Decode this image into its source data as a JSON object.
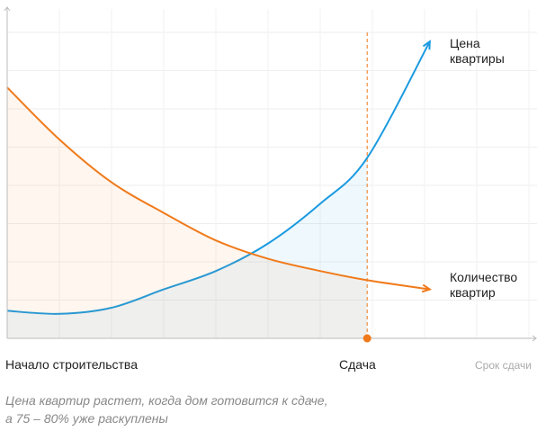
{
  "chart_data": {
    "type": "line",
    "x_axis_label": "Срок сдачи",
    "x": [
      0,
      10,
      20,
      30,
      40,
      50,
      60,
      69,
      81
    ],
    "xlim": [
      0,
      100
    ],
    "ylim": [
      0,
      100
    ],
    "grid": true,
    "series": [
      {
        "name": "Цена квартиры",
        "color": "#1a9ae0",
        "values": [
          9,
          8,
          10,
          16,
          22,
          31,
          44,
          59,
          97
        ]
      },
      {
        "name": "Количество квартир",
        "color": "#f07a1a",
        "values": [
          82,
          65,
          51,
          41,
          32,
          26,
          22,
          19,
          16
        ]
      }
    ],
    "x_markers": [
      {
        "value": 0,
        "label": "Начало строительства"
      },
      {
        "value": 69,
        "label": "Сдача"
      }
    ],
    "notes": [
      "Цена квартир растет, когда дом готовится к сдаче,",
      "а 75 – 80% уже раскуплены"
    ]
  }
}
